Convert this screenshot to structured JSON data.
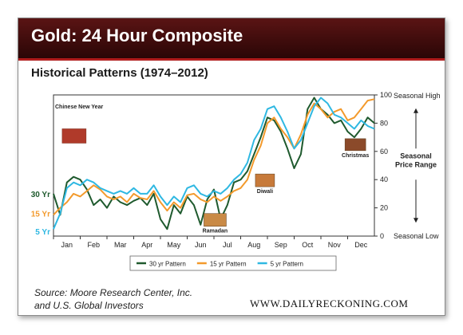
{
  "header": {
    "title": "Gold: 24 Hour Composite",
    "subtitle": "Historical Patterns (1974–2012)"
  },
  "footer": {
    "source_line1": "Source: Moore Research Center, Inc.",
    "source_line2": "and U.S. Global Investors",
    "site": "WWW.DAILYRECKONING.COM"
  },
  "chart_data": {
    "type": "line",
    "x": [
      0,
      1,
      2,
      3,
      4,
      5,
      6,
      7,
      8,
      9,
      10,
      11,
      12,
      13,
      14,
      15,
      16,
      17,
      18,
      19,
      20,
      21,
      22,
      23,
      24,
      25,
      26,
      27,
      28,
      29,
      30,
      31,
      32,
      33,
      34,
      35,
      36,
      37,
      38,
      39,
      40,
      41,
      42,
      43,
      44,
      45,
      46,
      47,
      48
    ],
    "xlim": [
      0,
      48
    ],
    "categories": [
      "Jan",
      "Feb",
      "Mar",
      "Apr",
      "May",
      "Jun",
      "Jul",
      "Aug",
      "Sep",
      "Oct",
      "Nov",
      "Dec"
    ],
    "ylim": [
      0,
      100
    ],
    "yticks": [
      "0",
      "20",
      "40",
      "60",
      "80",
      "100"
    ],
    "series": [
      {
        "name": "30 yr Pattern",
        "color": "#1f5a2e",
        "values": [
          30,
          15,
          38,
          42,
          40,
          33,
          22,
          26,
          20,
          28,
          24,
          22,
          25,
          27,
          22,
          30,
          12,
          5,
          22,
          16,
          28,
          22,
          8,
          26,
          33,
          12,
          22,
          38,
          40,
          46,
          58,
          70,
          84,
          82,
          74,
          62,
          48,
          58,
          90,
          98,
          90,
          86,
          80,
          82,
          74,
          70,
          76,
          84,
          80
        ]
      },
      {
        "name": "15 yr Pattern",
        "color": "#f39a2c",
        "values": [
          15,
          20,
          24,
          30,
          28,
          32,
          36,
          33,
          28,
          26,
          28,
          24,
          30,
          27,
          26,
          32,
          24,
          18,
          24,
          20,
          29,
          30,
          26,
          24,
          28,
          25,
          28,
          32,
          34,
          40,
          54,
          64,
          80,
          84,
          76,
          70,
          62,
          72,
          86,
          94,
          90,
          84,
          88,
          90,
          82,
          84,
          90,
          96,
          97
        ]
      },
      {
        "name": "5 yr Pattern",
        "color": "#2fb8e2",
        "values": [
          5,
          16,
          34,
          38,
          36,
          40,
          38,
          34,
          32,
          30,
          32,
          30,
          34,
          30,
          30,
          36,
          28,
          22,
          28,
          24,
          34,
          36,
          30,
          28,
          32,
          30,
          34,
          40,
          44,
          52,
          68,
          76,
          90,
          92,
          84,
          74,
          62,
          68,
          80,
          92,
          98,
          94,
          86,
          84,
          80,
          76,
          82,
          78,
          76
        ]
      }
    ],
    "left_labels": [
      "30 Yr",
      "15 Yr",
      "5 Yr"
    ],
    "left_label_values": [
      30,
      15,
      5
    ],
    "right_labels": {
      "top": "Seasonal High",
      "middle": "Seasonal Price Range",
      "bottom": "Seasonal Low"
    },
    "annotations": [
      "Chinese New Year",
      "Ramadan",
      "Diwali",
      "Christmas"
    ],
    "grid": false,
    "legend": "bottom-center"
  }
}
